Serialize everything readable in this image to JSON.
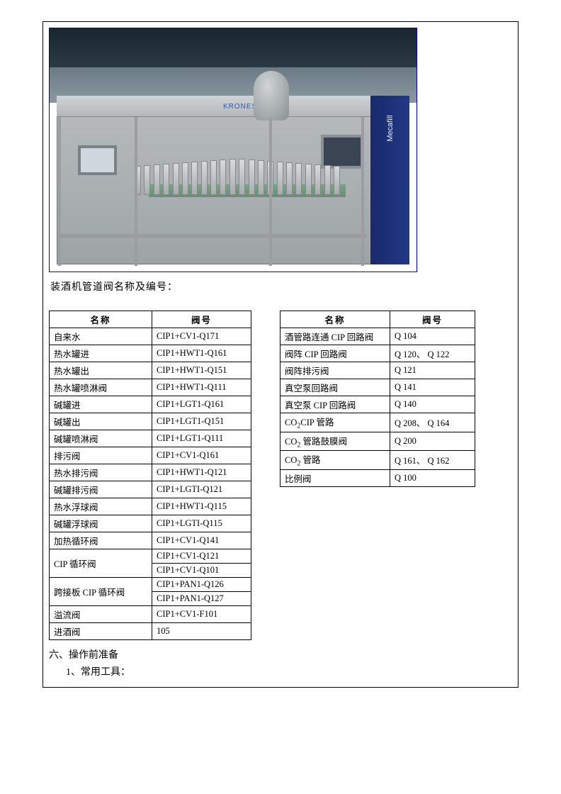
{
  "photo": {
    "brand_logo": "KRONES",
    "side_label": "Mecafill"
  },
  "caption": "装酒机管道阀名称及编号：",
  "table_headers": {
    "name": "名称",
    "code": "阀号"
  },
  "left_table": [
    {
      "name": "自来水",
      "codes": [
        "CIP1+CV1-Q171"
      ]
    },
    {
      "name": "热水罐进",
      "codes": [
        "CIP1+HWT1-Q161"
      ]
    },
    {
      "name": "热水罐出",
      "codes": [
        "CIP1+HWT1-Q151"
      ]
    },
    {
      "name": "热水罐喷淋阀",
      "codes": [
        "CIP1+HWT1-Q111"
      ]
    },
    {
      "name": "碱罐进",
      "codes": [
        "CIP1+LGT1-Q161"
      ]
    },
    {
      "name": "碱罐出",
      "codes": [
        "CIP1+LGT1-Q151"
      ]
    },
    {
      "name": "碱罐喷淋阀",
      "codes": [
        "CIP1+LGT1-Q111"
      ]
    },
    {
      "name": "排污阀",
      "codes": [
        "CIP1+CV1-Q161"
      ]
    },
    {
      "name": "热水排污阀",
      "codes": [
        "CIP1+HWT1-Q121"
      ]
    },
    {
      "name": "碱罐排污阀",
      "codes": [
        "CIP1+LGTI-Q121"
      ]
    },
    {
      "name": "热水浮球阀",
      "codes": [
        "CIP1+HWT1-Q115"
      ]
    },
    {
      "name": "碱罐浮球阀",
      "codes": [
        "CIP1+LGTI-Q115"
      ]
    },
    {
      "name": "加热循环阀",
      "codes": [
        "CIP1+CV1-Q141"
      ]
    },
    {
      "name": "CIP 循环阀",
      "codes": [
        "CIP1+CV1-Q121",
        "CIP1+CV1-Q101"
      ]
    },
    {
      "name": "跨接板 CIP 循环阀",
      "codes": [
        "CIP1+PAN1-Q126",
        "CIP1+PAN1-Q127"
      ]
    },
    {
      "name": "溢流阀",
      "codes": [
        "CIP1+CV1-F101"
      ]
    },
    {
      "name": "进酒阀",
      "codes": [
        "105"
      ]
    }
  ],
  "right_table": [
    {
      "name": "酒管路连通 CIP 回路阀",
      "code": "Q 104"
    },
    {
      "name": "阀阵 CIP 回路阀",
      "code": "Q 120、 Q 122"
    },
    {
      "name": "阀阵排污阀",
      "code": "Q 121"
    },
    {
      "name": "真空泵回路阀",
      "code": "Q 141"
    },
    {
      "name": "真空泵 CIP 回路阀",
      "code": "Q 140"
    },
    {
      "name_html": "CO<span class=\"sub2\">2</span>CIP 管路",
      "code": "Q 208、 Q 164"
    },
    {
      "name_html": "CO<span class=\"sub2\">2</span> 管路鼓膜阀",
      "code": "Q 200"
    },
    {
      "name_html": "CO<span class=\"sub2\">2</span> 管路",
      "code": "Q 161、 Q 162"
    },
    {
      "name": "比例阀",
      "code": "Q 100"
    }
  ],
  "footer": {
    "line1": "六、操作前准备",
    "line2": "1、常用工具："
  }
}
